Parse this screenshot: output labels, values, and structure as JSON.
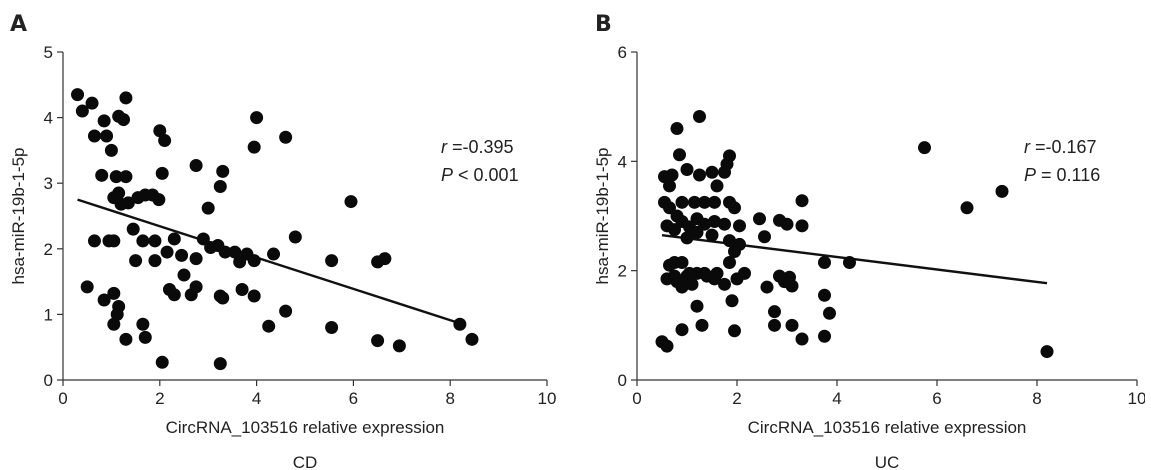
{
  "chart_data": [
    {
      "type": "scatter",
      "panel_label": "A",
      "xlabel": "CircRNA_103516 relative expression",
      "ylabel": "hsa-miR-19b-1-5p",
      "caption": "CD",
      "xlim": [
        0,
        10
      ],
      "ylim": [
        0,
        5
      ],
      "xticks": [
        0,
        2,
        4,
        6,
        8,
        10
      ],
      "yticks": [
        0,
        1,
        2,
        3,
        4,
        5
      ],
      "stat_r_label": "r",
      "stat_r_value": "=-0.395",
      "stat_p_label": "P",
      "stat_p_value": "< 0.001",
      "trendline": {
        "x": [
          0.3,
          8.3
        ],
        "y": [
          2.75,
          0.84
        ]
      },
      "points": [
        [
          0.3,
          4.35
        ],
        [
          0.4,
          4.1
        ],
        [
          0.6,
          4.22
        ],
        [
          0.85,
          3.95
        ],
        [
          1.3,
          4.3
        ],
        [
          1.15,
          4.02
        ],
        [
          1.25,
          3.97
        ],
        [
          0.65,
          3.72
        ],
        [
          0.9,
          3.72
        ],
        [
          1.0,
          3.5
        ],
        [
          0.8,
          3.12
        ],
        [
          1.1,
          3.1
        ],
        [
          1.3,
          3.1
        ],
        [
          1.15,
          2.85
        ],
        [
          1.05,
          2.78
        ],
        [
          1.2,
          2.68
        ],
        [
          1.35,
          2.7
        ],
        [
          1.55,
          2.78
        ],
        [
          1.7,
          2.82
        ],
        [
          1.85,
          2.82
        ],
        [
          1.98,
          2.75
        ],
        [
          2.0,
          3.8
        ],
        [
          2.1,
          3.65
        ],
        [
          2.05,
          3.15
        ],
        [
          4.0,
          4.0
        ],
        [
          3.95,
          3.55
        ],
        [
          4.6,
          3.7
        ],
        [
          2.75,
          3.27
        ],
        [
          3.3,
          3.18
        ],
        [
          3.25,
          2.95
        ],
        [
          3.0,
          2.62
        ],
        [
          0.65,
          2.12
        ],
        [
          0.95,
          2.12
        ],
        [
          1.05,
          2.12
        ],
        [
          1.45,
          2.3
        ],
        [
          1.65,
          2.12
        ],
        [
          1.9,
          2.12
        ],
        [
          2.3,
          2.15
        ],
        [
          2.9,
          2.15
        ],
        [
          3.2,
          2.05
        ],
        [
          1.5,
          1.82
        ],
        [
          1.9,
          1.82
        ],
        [
          2.15,
          1.95
        ],
        [
          2.45,
          1.9
        ],
        [
          2.75,
          1.85
        ],
        [
          3.05,
          2.02
        ],
        [
          3.35,
          1.95
        ],
        [
          3.55,
          1.95
        ],
        [
          3.65,
          1.8
        ],
        [
          3.8,
          1.92
        ],
        [
          3.95,
          1.82
        ],
        [
          4.35,
          1.92
        ],
        [
          4.8,
          2.18
        ],
        [
          0.5,
          1.42
        ],
        [
          0.85,
          1.22
        ],
        [
          1.05,
          1.32
        ],
        [
          1.15,
          1.12
        ],
        [
          1.05,
          0.85
        ],
        [
          1.12,
          1.0
        ],
        [
          1.65,
          0.85
        ],
        [
          1.7,
          0.65
        ],
        [
          1.3,
          0.62
        ],
        [
          2.2,
          1.38
        ],
        [
          2.3,
          1.3
        ],
        [
          2.5,
          1.6
        ],
        [
          2.65,
          1.3
        ],
        [
          2.75,
          1.42
        ],
        [
          3.25,
          1.28
        ],
        [
          3.3,
          1.25
        ],
        [
          3.7,
          1.38
        ],
        [
          3.95,
          1.28
        ],
        [
          4.25,
          0.82
        ],
        [
          4.6,
          1.05
        ],
        [
          2.05,
          0.27
        ],
        [
          3.25,
          0.25
        ],
        [
          5.55,
          1.82
        ],
        [
          5.95,
          2.72
        ],
        [
          6.5,
          1.8
        ],
        [
          6.65,
          1.85
        ],
        [
          5.55,
          0.8
        ],
        [
          6.5,
          0.6
        ],
        [
          6.95,
          0.52
        ],
        [
          8.2,
          0.85
        ],
        [
          8.45,
          0.62
        ]
      ]
    },
    {
      "type": "scatter",
      "panel_label": "B",
      "xlabel": "CircRNA_103516 relative expression",
      "ylabel": "hsa-miR-19b-1-5p",
      "caption": "UC",
      "xlim": [
        0,
        10
      ],
      "ylim": [
        0,
        6
      ],
      "xticks": [
        0,
        2,
        4,
        6,
        8,
        10
      ],
      "yticks": [
        0,
        2,
        4,
        6
      ],
      "stat_r_label": "r",
      "stat_r_value": "=-0.167",
      "stat_p_label": "P",
      "stat_p_value": "= 0.116",
      "trendline": {
        "x": [
          0.5,
          8.2
        ],
        "y": [
          2.65,
          1.77
        ]
      },
      "points": [
        [
          1.25,
          4.82
        ],
        [
          0.8,
          4.6
        ],
        [
          0.85,
          4.12
        ],
        [
          1.85,
          4.1
        ],
        [
          1.8,
          3.95
        ],
        [
          0.55,
          3.72
        ],
        [
          0.7,
          3.75
        ],
        [
          1.0,
          3.85
        ],
        [
          1.25,
          3.75
        ],
        [
          1.5,
          3.8
        ],
        [
          1.6,
          3.55
        ],
        [
          1.75,
          3.8
        ],
        [
          0.65,
          3.55
        ],
        [
          5.75,
          4.25
        ],
        [
          7.3,
          3.45
        ],
        [
          6.6,
          3.15
        ],
        [
          0.55,
          3.25
        ],
        [
          0.65,
          3.15
        ],
        [
          0.9,
          3.25
        ],
        [
          1.15,
          3.25
        ],
        [
          1.35,
          3.25
        ],
        [
          1.55,
          3.25
        ],
        [
          1.85,
          3.25
        ],
        [
          1.95,
          3.15
        ],
        [
          3.3,
          3.28
        ],
        [
          0.8,
          3.0
        ],
        [
          0.9,
          2.9
        ],
        [
          1.05,
          2.8
        ],
        [
          1.2,
          2.95
        ],
        [
          1.35,
          2.85
        ],
        [
          1.55,
          2.9
        ],
        [
          1.75,
          2.85
        ],
        [
          2.05,
          2.82
        ],
        [
          2.45,
          2.95
        ],
        [
          2.85,
          2.92
        ],
        [
          3.0,
          2.85
        ],
        [
          3.3,
          2.82
        ],
        [
          0.6,
          2.82
        ],
        [
          0.75,
          2.75
        ],
        [
          1.0,
          2.6
        ],
        [
          1.2,
          2.7
        ],
        [
          1.5,
          2.65
        ],
        [
          1.85,
          2.55
        ],
        [
          2.05,
          2.48
        ],
        [
          2.55,
          2.62
        ],
        [
          0.65,
          2.1
        ],
        [
          0.75,
          2.15
        ],
        [
          0.9,
          2.15
        ],
        [
          1.05,
          1.95
        ],
        [
          1.2,
          1.95
        ],
        [
          1.4,
          1.9
        ],
        [
          1.6,
          1.95
        ],
        [
          1.85,
          2.15
        ],
        [
          1.95,
          2.35
        ],
        [
          2.15,
          1.95
        ],
        [
          0.6,
          1.85
        ],
        [
          0.75,
          1.9
        ],
        [
          0.8,
          1.8
        ],
        [
          0.9,
          1.7
        ],
        [
          1.0,
          1.9
        ],
        [
          1.1,
          1.75
        ],
        [
          1.35,
          1.95
        ],
        [
          1.55,
          1.85
        ],
        [
          1.75,
          1.75
        ],
        [
          2.0,
          1.85
        ],
        [
          2.6,
          1.7
        ],
        [
          2.85,
          1.9
        ],
        [
          2.95,
          1.8
        ],
        [
          3.05,
          1.88
        ],
        [
          3.1,
          1.72
        ],
        [
          3.75,
          2.15
        ],
        [
          4.25,
          2.15
        ],
        [
          1.2,
          1.35
        ],
        [
          1.9,
          1.45
        ],
        [
          2.75,
          1.25
        ],
        [
          3.75,
          1.55
        ],
        [
          3.85,
          1.22
        ],
        [
          1.3,
          1.0
        ],
        [
          0.9,
          0.92
        ],
        [
          1.95,
          0.9
        ],
        [
          2.75,
          1.0
        ],
        [
          3.1,
          1.0
        ],
        [
          3.3,
          0.75
        ],
        [
          3.75,
          0.8
        ],
        [
          0.5,
          0.7
        ],
        [
          0.6,
          0.62
        ],
        [
          8.2,
          0.52
        ]
      ]
    }
  ]
}
